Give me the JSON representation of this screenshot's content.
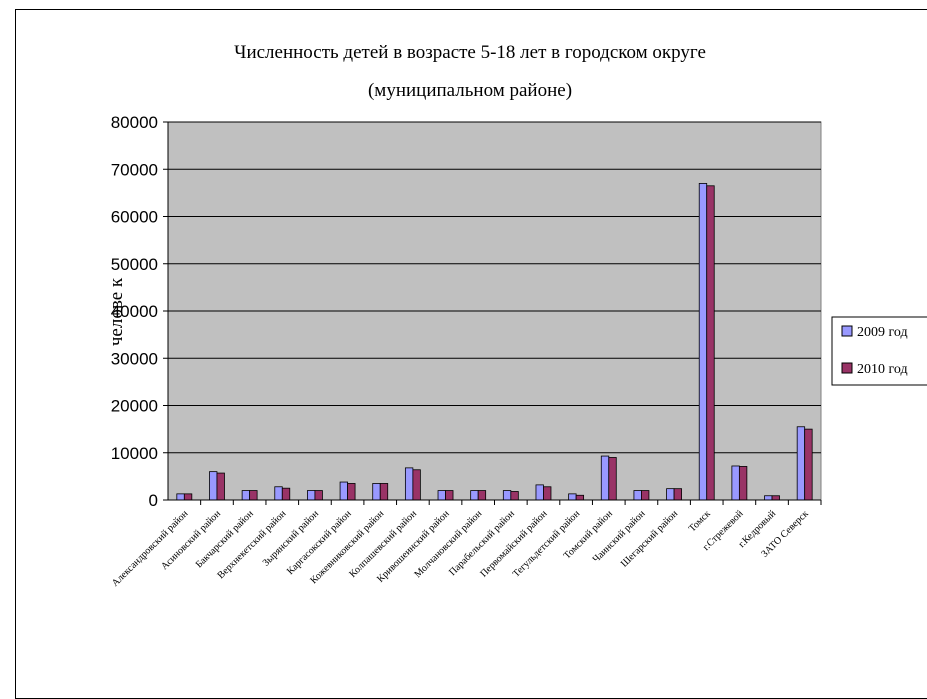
{
  "chart_data": {
    "type": "bar",
    "title_lines": [
      "Численность детей в  возрасте 5-18 лет в городском округе",
      "(муниципальном районе)"
    ],
    "xlabel": "",
    "ylabel": "челове к",
    "ylim": [
      0,
      80000
    ],
    "yticks": [
      0,
      10000,
      20000,
      30000,
      40000,
      50000,
      60000,
      70000,
      80000
    ],
    "grid": true,
    "legend_position": "right",
    "plot_background": "#c0c0c0",
    "categories": [
      "Александровский район",
      "Асиновский район",
      "Бакчарский район",
      "Верхнекетский район",
      "Зырянский район",
      "Каргасокский район",
      "Кожевниковский район",
      "Колпашевский район",
      "Кривошеинский район",
      "Молчановский район",
      "Парабельский район",
      "Первомайский район",
      "Тегульдетский район",
      "Томский район",
      "Чаинский район",
      "Шегарский район",
      "Томск",
      "г.Стрежевой",
      "г.Кедровый",
      "ЗАТО Северск"
    ],
    "series": [
      {
        "name": "2009 год",
        "color": "#9999ff",
        "values": [
          1300,
          6000,
          2000,
          2800,
          2000,
          3800,
          3500,
          6800,
          2000,
          2000,
          2000,
          3200,
          1300,
          9300,
          2000,
          2400,
          67000,
          7200,
          900,
          15500
        ]
      },
      {
        "name": "2010 год",
        "color": "#993366",
        "values": [
          1300,
          5700,
          2000,
          2500,
          2000,
          3500,
          3500,
          6400,
          2000,
          2000,
          1800,
          2800,
          1000,
          9000,
          2000,
          2400,
          66500,
          7100,
          900,
          15000
        ]
      }
    ]
  }
}
